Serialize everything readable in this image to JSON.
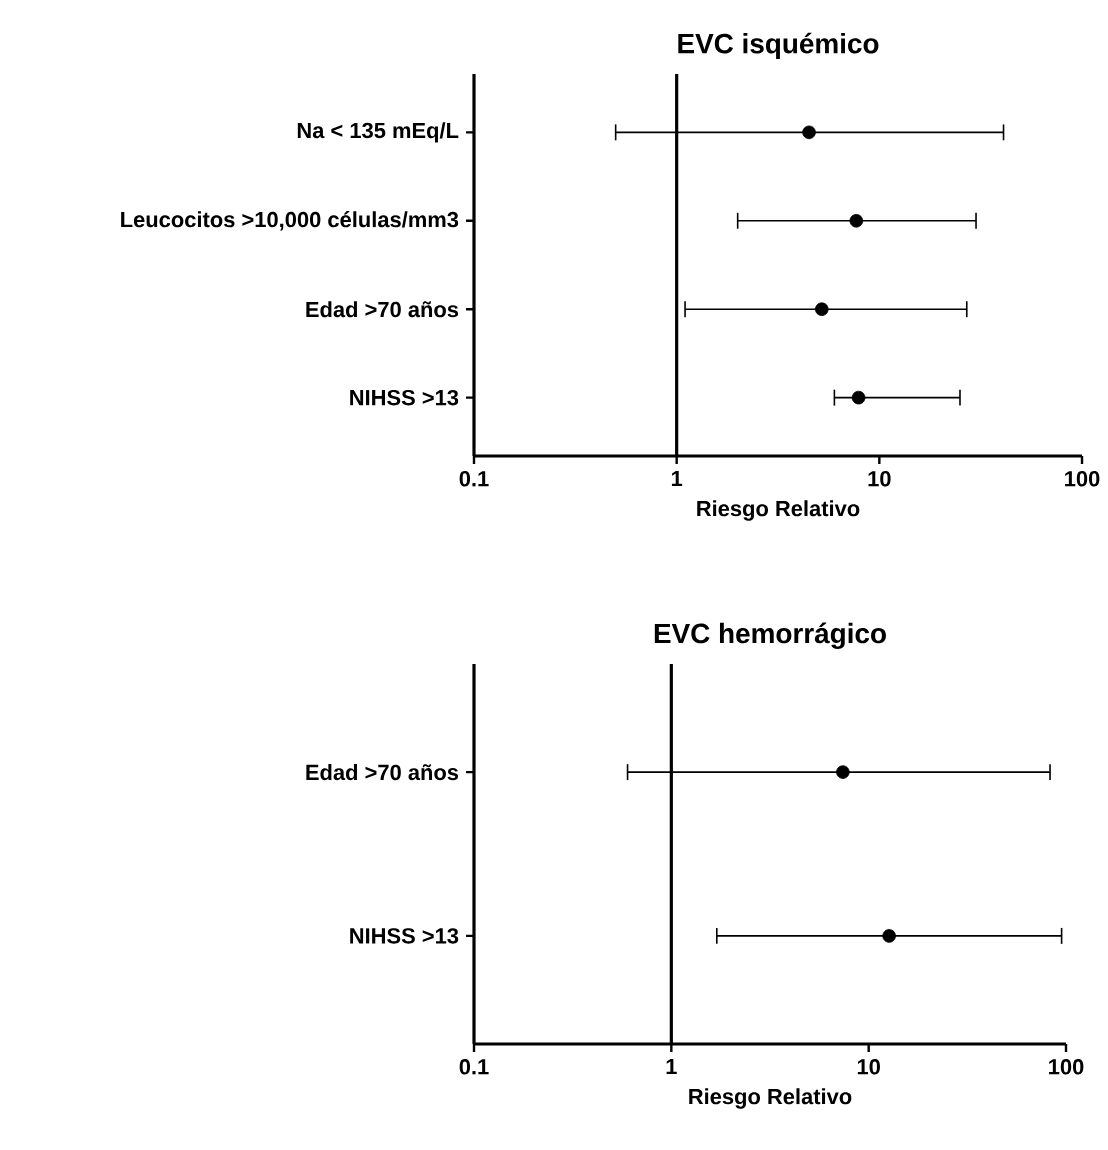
{
  "chart_data": [
    {
      "type": "scatter",
      "orientation": "horizontal",
      "title": "EVC isquémico",
      "xlabel": "Riesgo Relativo",
      "categories": [
        "Na < 135 mEq/L",
        "Leucocitos >10,000 células/mm3",
        "Edad >70 años",
        "NIHSS >13"
      ],
      "values": [
        4.5,
        7.7,
        5.2,
        7.9
      ],
      "errors": [
        [
          0.5,
          41
        ],
        [
          2.0,
          30
        ],
        [
          1.1,
          27
        ],
        [
          6.0,
          25
        ]
      ],
      "xlim": [
        0.1,
        100
      ],
      "xticks": [
        0.1,
        1,
        10,
        100
      ],
      "log": "x",
      "marker": "circle",
      "color": "#000000",
      "ref_lines": [
        {
          "axis": "x",
          "value": 1
        }
      ]
    },
    {
      "type": "scatter",
      "orientation": "horizontal",
      "title": "EVC hemorrágico",
      "xlabel": "Riesgo Relativo",
      "categories": [
        "Edad >70 años",
        "NIHSS >13"
      ],
      "values": [
        7.4,
        12.7
      ],
      "errors": [
        [
          0.6,
          83
        ],
        [
          1.7,
          95
        ]
      ],
      "xlim": [
        0.1,
        100
      ],
      "xticks": [
        0.1,
        1,
        10,
        100
      ],
      "log": "x",
      "marker": "circle",
      "color": "#000000",
      "ref_lines": [
        {
          "axis": "x",
          "value": 1
        }
      ]
    }
  ]
}
